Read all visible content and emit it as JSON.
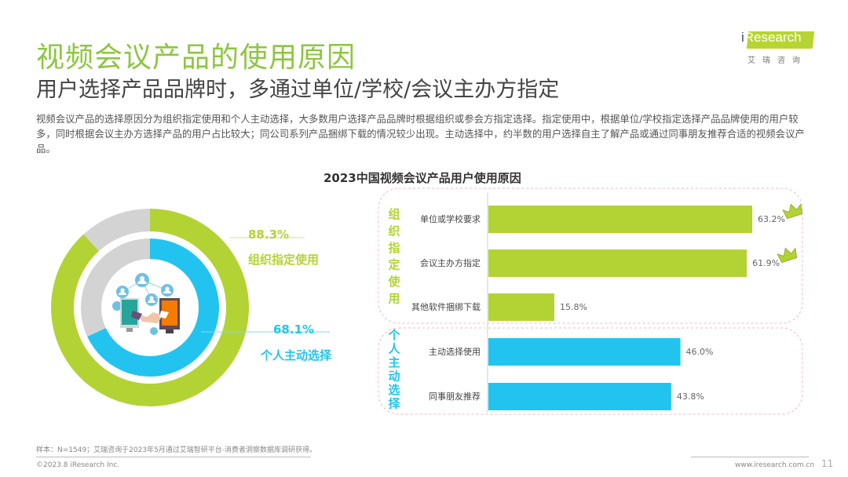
{
  "header": {
    "title": "视频会议产品的使用原因",
    "subtitle": "用户选择产品品牌时，多通过单位/学校/会议主办方指定",
    "description": "视频会议产品的选择原因分为组织指定使用和个人主动选择，大多数用户选择产品品牌时根据组织或参会方指定选择。指定使用中，根据单位/学校指定选择产品品牌使用的用户较多，同时根据会议主办方选择产品的用户占比较大；同公司系列产品捆绑下载的情况较少出现。主动选择中，约半数的用户选择自主了解产品或通过同事朋友推荐合适的视频会议产品。"
  },
  "logo": {
    "brand_prefix": "i",
    "brand_rest": "Research",
    "cn_name": "艾瑞咨询"
  },
  "colors": {
    "green": "#b3d334",
    "blue": "#22c4ef",
    "gray": "#d3d3d3",
    "title_green": "#8dc63f"
  },
  "chart_data": [
    {
      "type": "pie",
      "subtype": "nested-donut",
      "series": [
        {
          "name": "组织指定使用",
          "value": 88.3,
          "label": "88.3%",
          "color": "#b3d334",
          "ring": "outer"
        },
        {
          "name": "个人主动选择",
          "value": 68.1,
          "label": "68.1%",
          "color": "#22c4ef",
          "ring": "inner"
        }
      ],
      "max": 100,
      "center_icon": "video-meeting-handshake-icon"
    },
    {
      "type": "bar",
      "orientation": "horizontal",
      "title": "2023中国视频会议产品用户使用原因",
      "unit": "%",
      "xlim": [
        0,
        70
      ],
      "groups": [
        {
          "name": "组织指定使用",
          "color": "#b3d334",
          "items": [
            {
              "category": "单位或学校要求",
              "value": 63.2,
              "label": "63.2%",
              "crown": true
            },
            {
              "category": "会议主办方指定",
              "value": 61.9,
              "label": "61.9%",
              "crown": true
            },
            {
              "category": "其他软件捆绑下载",
              "value": 15.8,
              "label": "15.8%",
              "crown": false
            }
          ]
        },
        {
          "name": "个人主动选择",
          "color": "#22c4ef",
          "items": [
            {
              "category": "主动选择使用",
              "value": 46.0,
              "label": "46.0%",
              "crown": false
            },
            {
              "category": "同事朋友推荐",
              "value": 43.8,
              "label": "43.8%",
              "crown": false
            }
          ]
        }
      ]
    }
  ],
  "footer": {
    "note": "样本：N=1549；艾瑞咨询于2023年5月通过艾瑞智研平台-消费者洞察数据库调研获得。",
    "copyright": "©2023.8 iResearch Inc.",
    "website": "www.iresearch.com.cn",
    "page_number": "11"
  }
}
